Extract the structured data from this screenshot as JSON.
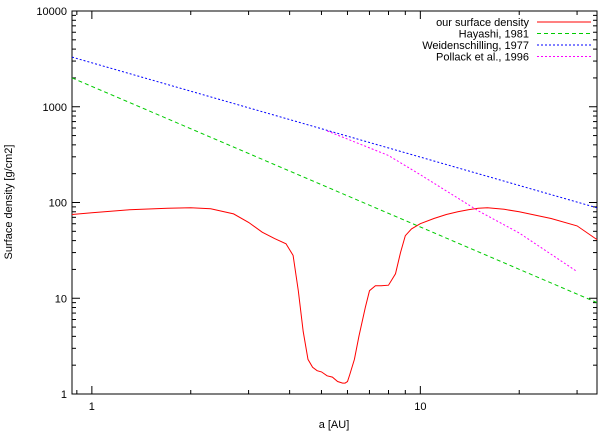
{
  "chart_data": {
    "type": "line",
    "title": "",
    "xlabel": "a [AU]",
    "ylabel": "Surface density [g/cm2]",
    "xscale": "log",
    "yscale": "log",
    "xlim": [
      0.87,
      34.5
    ],
    "ylim": [
      1,
      10000
    ],
    "xticks": [
      {
        "value": 1,
        "label": "1"
      },
      {
        "value": 10,
        "label": "10"
      }
    ],
    "yticks": [
      {
        "value": 1,
        "label": "1"
      },
      {
        "value": 10,
        "label": "10"
      },
      {
        "value": 100,
        "label": "100"
      },
      {
        "value": 1000,
        "label": "1000"
      },
      {
        "value": 10000,
        "label": "10000"
      }
    ],
    "grid": false,
    "legend_position": "top-right",
    "series": [
      {
        "name": "our surface density",
        "color": "#ff0000",
        "style": "solid",
        "x": [
          0.87,
          1.0,
          1.3,
          1.7,
          2.0,
          2.3,
          2.7,
          3.0,
          3.3,
          3.6,
          3.9,
          4.1,
          4.25,
          4.4,
          4.55,
          4.7,
          4.85,
          5.0,
          5.2,
          5.4,
          5.6,
          5.8,
          5.9,
          6.0,
          6.1,
          6.3,
          6.5,
          6.8,
          7.0,
          7.3,
          7.6,
          8.0,
          8.4,
          8.7,
          9.0,
          9.4,
          10.0,
          11.0,
          12.0,
          13.0,
          14.0,
          15.0,
          16.0,
          18.0,
          20.0,
          25.0,
          30.0,
          34.5
        ],
        "y": [
          75,
          78,
          84,
          87,
          88,
          86,
          76,
          62,
          49,
          42,
          37,
          28,
          12,
          4.5,
          2.3,
          1.9,
          1.75,
          1.7,
          1.55,
          1.5,
          1.35,
          1.3,
          1.3,
          1.35,
          1.6,
          2.3,
          4,
          8,
          12,
          13.5,
          13.5,
          13.7,
          18,
          30,
          45,
          53,
          60,
          68,
          75,
          80,
          84,
          87,
          88,
          85,
          80,
          68,
          57,
          41
        ]
      },
      {
        "name": "Hayashi, 1981",
        "color": "#00cc00",
        "style": "dashed",
        "x": [
          0.87,
          34.5
        ],
        "y": [
          2000,
          9
        ]
      },
      {
        "name": "Weidenschilling, 1977",
        "color": "#0000ff",
        "style": "dotted",
        "x": [
          0.87,
          34.5
        ],
        "y": [
          3300,
          88
        ]
      },
      {
        "name": "Pollack et al., 1996",
        "color": "#ff00ff",
        "style": "dotted",
        "x": [
          5.2,
          8.0,
          10.0,
          15.0,
          20.0,
          30.0
        ],
        "y": [
          560,
          310,
          195,
          82,
          48,
          19
        ]
      }
    ]
  }
}
